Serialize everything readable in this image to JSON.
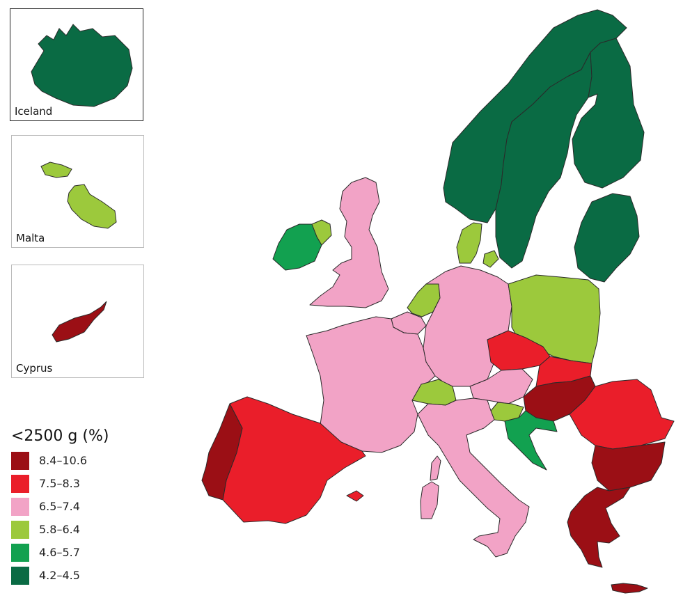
{
  "legend": {
    "title": "<2500 g (%)",
    "classes": [
      {
        "label": "8.4–10.6",
        "color": "#9b0f15"
      },
      {
        "label": "7.5–8.3",
        "color": "#ea1e2a"
      },
      {
        "label": "6.5–7.4",
        "color": "#f2a3c6"
      },
      {
        "label": "5.8–6.4",
        "color": "#9cc93c"
      },
      {
        "label": "4.6–5.7",
        "color": "#12a150"
      },
      {
        "label": "4.2–4.5",
        "color": "#0a6b44"
      }
    ]
  },
  "insets": {
    "iceland": {
      "label": "Iceland",
      "color": "#0a6b44"
    },
    "malta": {
      "label": "Malta",
      "color": "#9cc93c"
    },
    "cyprus": {
      "label": "Cyprus",
      "color": "#9b0f15"
    }
  },
  "countries": [
    {
      "name": "Norway",
      "value_class": "4.2–4.5",
      "color": "#0a6b44"
    },
    {
      "name": "Sweden",
      "value_class": "4.2–4.5",
      "color": "#0a6b44"
    },
    {
      "name": "Finland",
      "value_class": "4.2–4.5",
      "color": "#0a6b44"
    },
    {
      "name": "Estonia",
      "value_class": "4.2–4.5",
      "color": "#0a6b44"
    },
    {
      "name": "Latvia",
      "value_class": "4.2–4.5",
      "color": "#0a6b44"
    },
    {
      "name": "Lithuania",
      "value_class": "4.2–4.5",
      "color": "#0a6b44"
    },
    {
      "name": "Ireland",
      "value_class": "4.6–5.7",
      "color": "#12a150"
    },
    {
      "name": "Northern Ireland",
      "value_class": "5.8–6.4",
      "color": "#9cc93c"
    },
    {
      "name": "United Kingdom",
      "value_class": "6.5–7.4",
      "color": "#f2a3c6"
    },
    {
      "name": "Denmark",
      "value_class": "5.8–6.4",
      "color": "#9cc93c"
    },
    {
      "name": "Netherlands",
      "value_class": "5.8–6.4",
      "color": "#9cc93c"
    },
    {
      "name": "Belgium",
      "value_class": "6.5–7.4",
      "color": "#f2a3c6"
    },
    {
      "name": "Luxembourg",
      "value_class": "6.5–7.4",
      "color": "#f2a3c6"
    },
    {
      "name": "Germany",
      "value_class": "6.5–7.4",
      "color": "#f2a3c6"
    },
    {
      "name": "France",
      "value_class": "6.5–7.4",
      "color": "#f2a3c6"
    },
    {
      "name": "Poland",
      "value_class": "5.8–6.4",
      "color": "#9cc93c"
    },
    {
      "name": "Czech Republic",
      "value_class": "7.5–8.3",
      "color": "#ea1e2a"
    },
    {
      "name": "Slovakia",
      "value_class": "7.5–8.3",
      "color": "#ea1e2a"
    },
    {
      "name": "Austria",
      "value_class": "6.5–7.4",
      "color": "#f2a3c6"
    },
    {
      "name": "Switzerland",
      "value_class": "5.8–6.4",
      "color": "#9cc93c"
    },
    {
      "name": "Hungary",
      "value_class": "8.4–10.6",
      "color": "#9b0f15"
    },
    {
      "name": "Slovenia",
      "value_class": "5.8–6.4",
      "color": "#9cc93c"
    },
    {
      "name": "Croatia",
      "value_class": "4.6–5.7",
      "color": "#12a150"
    },
    {
      "name": "Romania",
      "value_class": "7.5–8.3",
      "color": "#ea1e2a"
    },
    {
      "name": "Bulgaria",
      "value_class": "8.4–10.6",
      "color": "#9b0f15"
    },
    {
      "name": "Greece",
      "value_class": "8.4–10.6",
      "color": "#9b0f15"
    },
    {
      "name": "Italy",
      "value_class": "6.5–7.4",
      "color": "#f2a3c6"
    },
    {
      "name": "Spain",
      "value_class": "7.5–8.3",
      "color": "#ea1e2a"
    },
    {
      "name": "Portugal",
      "value_class": "8.4–10.6",
      "color": "#9b0f15"
    }
  ]
}
